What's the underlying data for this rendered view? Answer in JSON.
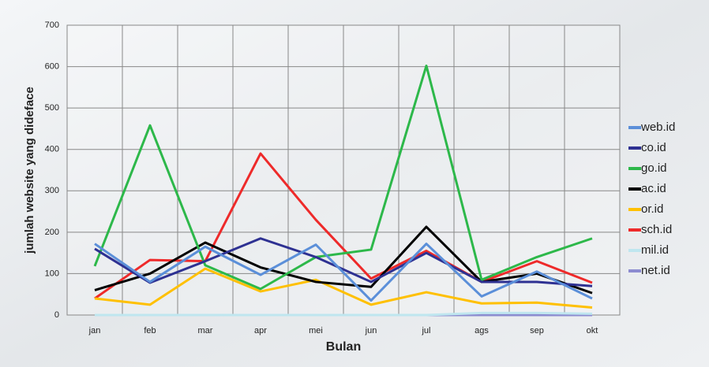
{
  "chart_data": {
    "type": "line",
    "xlabel": "Bulan",
    "ylabel": "jumlah website yang dideface",
    "categories": [
      "jan",
      "feb",
      "mar",
      "apr",
      "mei",
      "jun",
      "jul",
      "ags",
      "sep",
      "okt"
    ],
    "series": [
      {
        "name": "web.id",
        "color": "#5b8fd9",
        "values": [
          172,
          80,
          165,
          97,
          170,
          35,
          172,
          45,
          105,
          40
        ]
      },
      {
        "name": "co.id",
        "color": "#2e3192",
        "values": [
          160,
          78,
          130,
          185,
          140,
          80,
          150,
          80,
          80,
          70
        ]
      },
      {
        "name": "go.id",
        "color": "#2db84a",
        "values": [
          118,
          458,
          120,
          63,
          140,
          158,
          602,
          85,
          140,
          185
        ]
      },
      {
        "name": "ac.id",
        "color": "#000000",
        "values": [
          60,
          100,
          175,
          115,
          80,
          68,
          213,
          80,
          100,
          53
        ]
      },
      {
        "name": "or.id",
        "color": "#ffc000",
        "values": [
          40,
          25,
          112,
          57,
          85,
          25,
          55,
          28,
          30,
          18
        ]
      },
      {
        "name": "sch.id",
        "color": "#ee2a2a",
        "values": [
          40,
          133,
          130,
          390,
          230,
          88,
          155,
          80,
          130,
          78
        ]
      },
      {
        "name": "mil.id",
        "color": "#bfe6ef",
        "values": [
          0,
          0,
          0,
          0,
          0,
          0,
          0,
          5,
          5,
          3
        ]
      },
      {
        "name": "net.id",
        "color": "#8c8cd0",
        "values": [
          0,
          0,
          0,
          0,
          0,
          0,
          0,
          0,
          0,
          0
        ]
      }
    ],
    "ylim": [
      0,
      700
    ],
    "yticks": [
      0,
      100,
      200,
      300,
      400,
      500,
      600,
      700
    ],
    "grid": true,
    "legend": "right"
  }
}
